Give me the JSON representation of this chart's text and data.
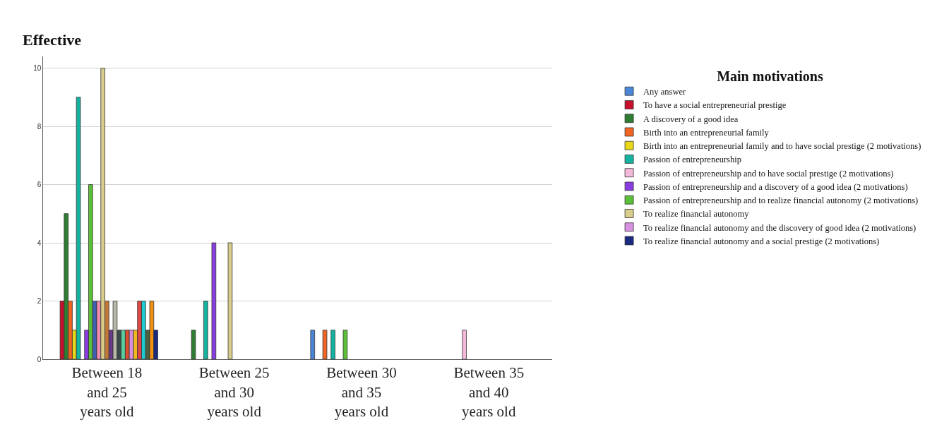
{
  "chart_data": {
    "type": "bar",
    "categories": [
      "Between 18 and 25 years old",
      "Between 25 and 30 years old",
      "Between 30 and 35 years old",
      "Between 35 and 40 years old"
    ],
    "ylabel": "Effective",
    "legend_title": "Main motivations",
    "ylim": [
      0,
      10.4
    ],
    "yticks": [
      0,
      2,
      4,
      6,
      8,
      10
    ],
    "grid": "y",
    "legend": "right",
    "series": [
      {
        "name": "Any answer",
        "color": "#4a86d6",
        "values": [
          null,
          null,
          1,
          null
        ]
      },
      {
        "name": "To have a social entrepreneurial prestige",
        "color": "#c8102e",
        "values": [
          2,
          null,
          null,
          null
        ]
      },
      {
        "name": "A discovery of a good idea",
        "color": "#2e7d32",
        "values": [
          5,
          1,
          null,
          null
        ]
      },
      {
        "name": "Birth into an entrepreneurial family",
        "color": "#f06424",
        "values": [
          2,
          null,
          1,
          null
        ]
      },
      {
        "name": "Birth into an entrepreneurial family and to have social prestige (2 motivations)",
        "color": "#e8d81a",
        "values": [
          1,
          null,
          null,
          null
        ]
      },
      {
        "name": "Passion of entrepreneurship",
        "color": "#14b3a0",
        "values": [
          9,
          2,
          1,
          null
        ]
      },
      {
        "name": "Passion of entrepreneurship and to have social prestige (2 motivations)",
        "color": "#f4b8d8",
        "values": [
          null,
          null,
          null,
          1
        ]
      },
      {
        "name": "Passion of entrepreneurship and a discovery of a good idea (2 motivations)",
        "color": "#8a3ee0",
        "values": [
          1,
          4,
          null,
          null
        ]
      },
      {
        "name": "Passion of entrepreneurship and to realize financial autonomy (2 motivations)",
        "color": "#5cbf3a",
        "values": [
          6,
          null,
          1,
          null
        ]
      },
      {
        "color": "#3f5fb0",
        "values": [
          2,
          null,
          null,
          null
        ]
      },
      {
        "color": "#f08cb0",
        "values": [
          2,
          null,
          null,
          null
        ]
      },
      {
        "name": "To realize financial autonomy",
        "color": "#d8cd8a",
        "values": [
          10,
          4,
          null,
          null
        ]
      },
      {
        "color": "#c07838",
        "values": [
          2,
          null,
          null,
          null
        ]
      },
      {
        "color": "#6a3a8a",
        "values": [
          1,
          null,
          null,
          null
        ]
      },
      {
        "color": "#b8b8a8",
        "values": [
          2,
          null,
          null,
          null
        ]
      },
      {
        "color": "#3a4a4a",
        "values": [
          1,
          null,
          null,
          null
        ]
      },
      {
        "color": "#5ad0a0",
        "values": [
          1,
          null,
          null,
          null
        ]
      },
      {
        "color": "#d85030",
        "values": [
          1,
          null,
          null,
          null
        ]
      },
      {
        "name": "To realize financial autonomy and the discovery of good idea (2 motivations)",
        "color": "#d890e0",
        "values": [
          1,
          null,
          null,
          null
        ]
      },
      {
        "color": "#f0b820",
        "values": [
          1,
          null,
          null,
          null
        ]
      },
      {
        "color": "#e04848",
        "values": [
          2,
          null,
          null,
          null
        ]
      },
      {
        "color": "#20c8d0",
        "values": [
          2,
          null,
          null,
          null
        ]
      },
      {
        "color": "#4a6040",
        "values": [
          1,
          null,
          null,
          null
        ]
      },
      {
        "color": "#f09010",
        "values": [
          2,
          null,
          null,
          null
        ]
      },
      {
        "name": "To realize financial autonomy and a social prestige (2 motivations)",
        "color": "#1a2a80",
        "values": [
          1,
          null,
          null,
          null
        ]
      }
    ]
  }
}
